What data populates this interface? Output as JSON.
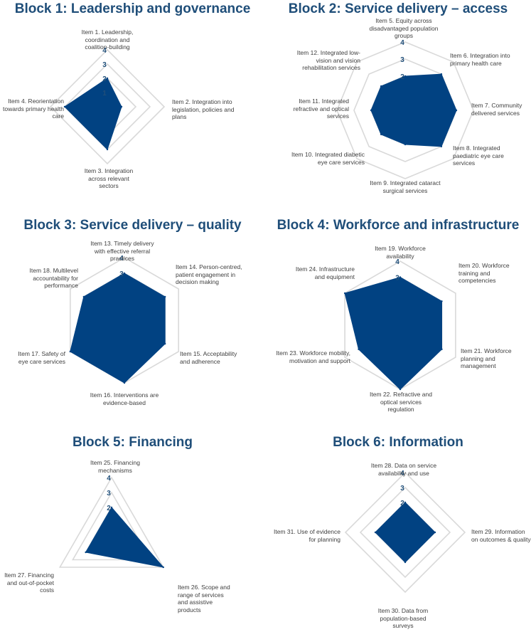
{
  "colors": {
    "fill": "#014282",
    "grid": "#d9d9d9",
    "title": "#1f4e79",
    "tick": "#1f4e79",
    "label": "#404040"
  },
  "chart_data": [
    {
      "type": "radar",
      "title": "Block 1: Leadership and governance",
      "rmax": 4,
      "ticks": [
        "1",
        "2",
        "3",
        "4"
      ],
      "categories": [
        "Item 1. Leadership, coordination and coalition-building",
        "Item 2. Integration into legislation, policies and plans",
        "Item 3. Integration across relevant sectors",
        "Item 4. Reorientation towards primary health care"
      ],
      "values": [
        2,
        1,
        3,
        3
      ]
    },
    {
      "type": "radar",
      "title": "Block 2: Service delivery – access",
      "rmax": 4,
      "ticks": [
        "2",
        "3",
        "4"
      ],
      "categories": [
        "Item 5. Equity across disadvantaged population groups",
        "Item 6. Integration into primary health care",
        "Item 7. Community delivered services",
        "Item 8. Integrated paediatric eye care services",
        "Item 9. Integrated cataract surgical services",
        "Item 10. Integrated diabetic eye care services",
        "Item 11. Integrated refractive and optical services",
        "Item 12. Integrated low-vision and vision rehabilitation services"
      ],
      "values": [
        2,
        3,
        3,
        3,
        2,
        2,
        2,
        2
      ]
    },
    {
      "type": "radar",
      "title": "Block 3: Service delivery – quality",
      "rmax": 4,
      "ticks": [
        "3",
        "4"
      ],
      "categories": [
        "Item 13. Timely delivery with effective referral practices",
        "Item 14. Person-centred, patient engagement in decision making",
        "Item 15. Acceptability and adherence",
        "Item 16. Interventions are evidence-based",
        "Item 17. Safety of eye care services",
        "Item 18. Multilevel accountability for performance"
      ],
      "values": [
        3,
        3,
        3,
        4,
        4,
        3
      ]
    },
    {
      "type": "radar",
      "title": "Block 4: Workforce and infrastructure",
      "rmax": 4,
      "ticks": [
        "3",
        "4"
      ],
      "categories": [
        "Item 19. Workforce availability",
        "Item 20. Workforce training and competencies",
        "Item 21. Workforce planning and management",
        "Item 22. Refractive and optical services regulation",
        "Item 23. Workforce mobility, motivation and support",
        "Item 24. Infrastructure and equipment"
      ],
      "values": [
        3,
        3,
        3,
        4,
        3,
        4
      ]
    },
    {
      "type": "radar",
      "title": "Block 5: Financing",
      "rmax": 4,
      "ticks": [
        "2",
        "3",
        "4"
      ],
      "categories": [
        "Item 25. Financing mechanisms",
        "Item 26. Scope and range of services and assistive products",
        "Item 27. Financing and out-of-pocket costs"
      ],
      "values": [
        2,
        4,
        2
      ]
    },
    {
      "type": "radar",
      "title": "Block 6: Information",
      "rmax": 4,
      "ticks": [
        "2",
        "3",
        "4"
      ],
      "categories": [
        "Item 28. Data on service availability and use",
        "Item 29. Information on outcomes & quality",
        "Item 30. Data from population-based surveys",
        "Item 31. Use of evidence for planning"
      ],
      "values": [
        2,
        2,
        2,
        2
      ]
    }
  ]
}
